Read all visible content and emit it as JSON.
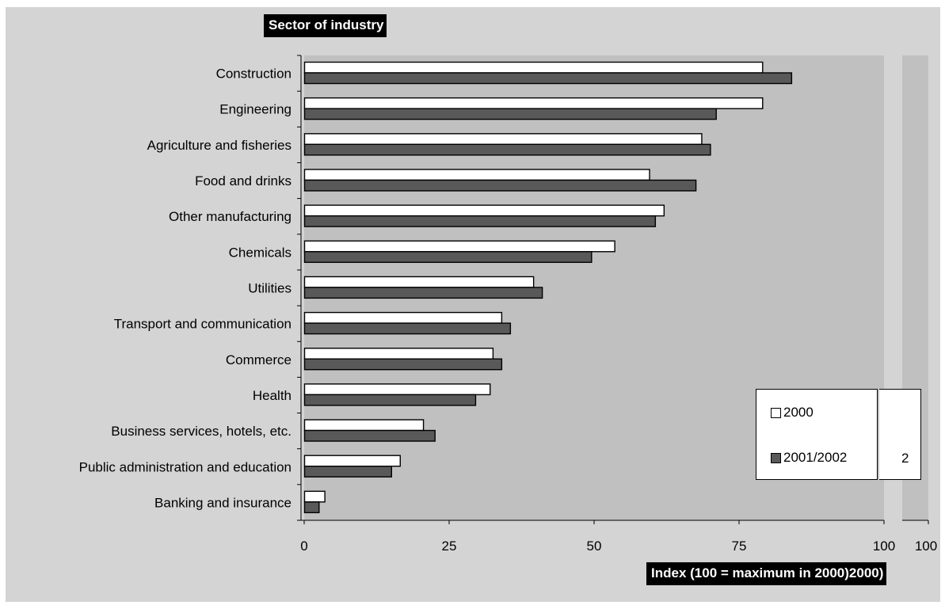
{
  "chart_data": {
    "type": "bar",
    "orientation": "horizontal",
    "title": "",
    "ylabel": "Sector of industry",
    "xlabel": "Index (100 = maximum in 2000)",
    "xlabel_ghost_fragment": "2000)",
    "categories": [
      "Construction",
      "Engineering",
      "Agriculture and fisheries",
      "Food and drinks",
      "Other manufacturing",
      "Chemicals",
      "Utilities",
      "Transport and communication",
      "Commerce",
      "Health",
      "Business services, hotels, etc.",
      "Public administration and education",
      "Banking and insurance"
    ],
    "series": [
      {
        "name": "2000",
        "color": "#ffffff",
        "values": [
          79,
          79,
          68.5,
          59.5,
          62,
          53.5,
          39.5,
          34,
          32.5,
          32,
          20.5,
          16.5,
          3.5
        ]
      },
      {
        "name": "2001/2002",
        "color": "#595959",
        "values": [
          84,
          71,
          70,
          67.5,
          60.5,
          49.5,
          41,
          35.5,
          34,
          29.5,
          22.5,
          15,
          2.5
        ]
      }
    ],
    "xlim": [
      0,
      100
    ],
    "xticks": [
      "0",
      "25",
      "50",
      "75",
      "100"
    ],
    "ghost_xtick": "100",
    "legend_ghost_fragment": "2",
    "grid": false,
    "legend_position": "bottom-right",
    "plot_background": "#c0c0c0",
    "frame_background": "#d4d4d4"
  }
}
